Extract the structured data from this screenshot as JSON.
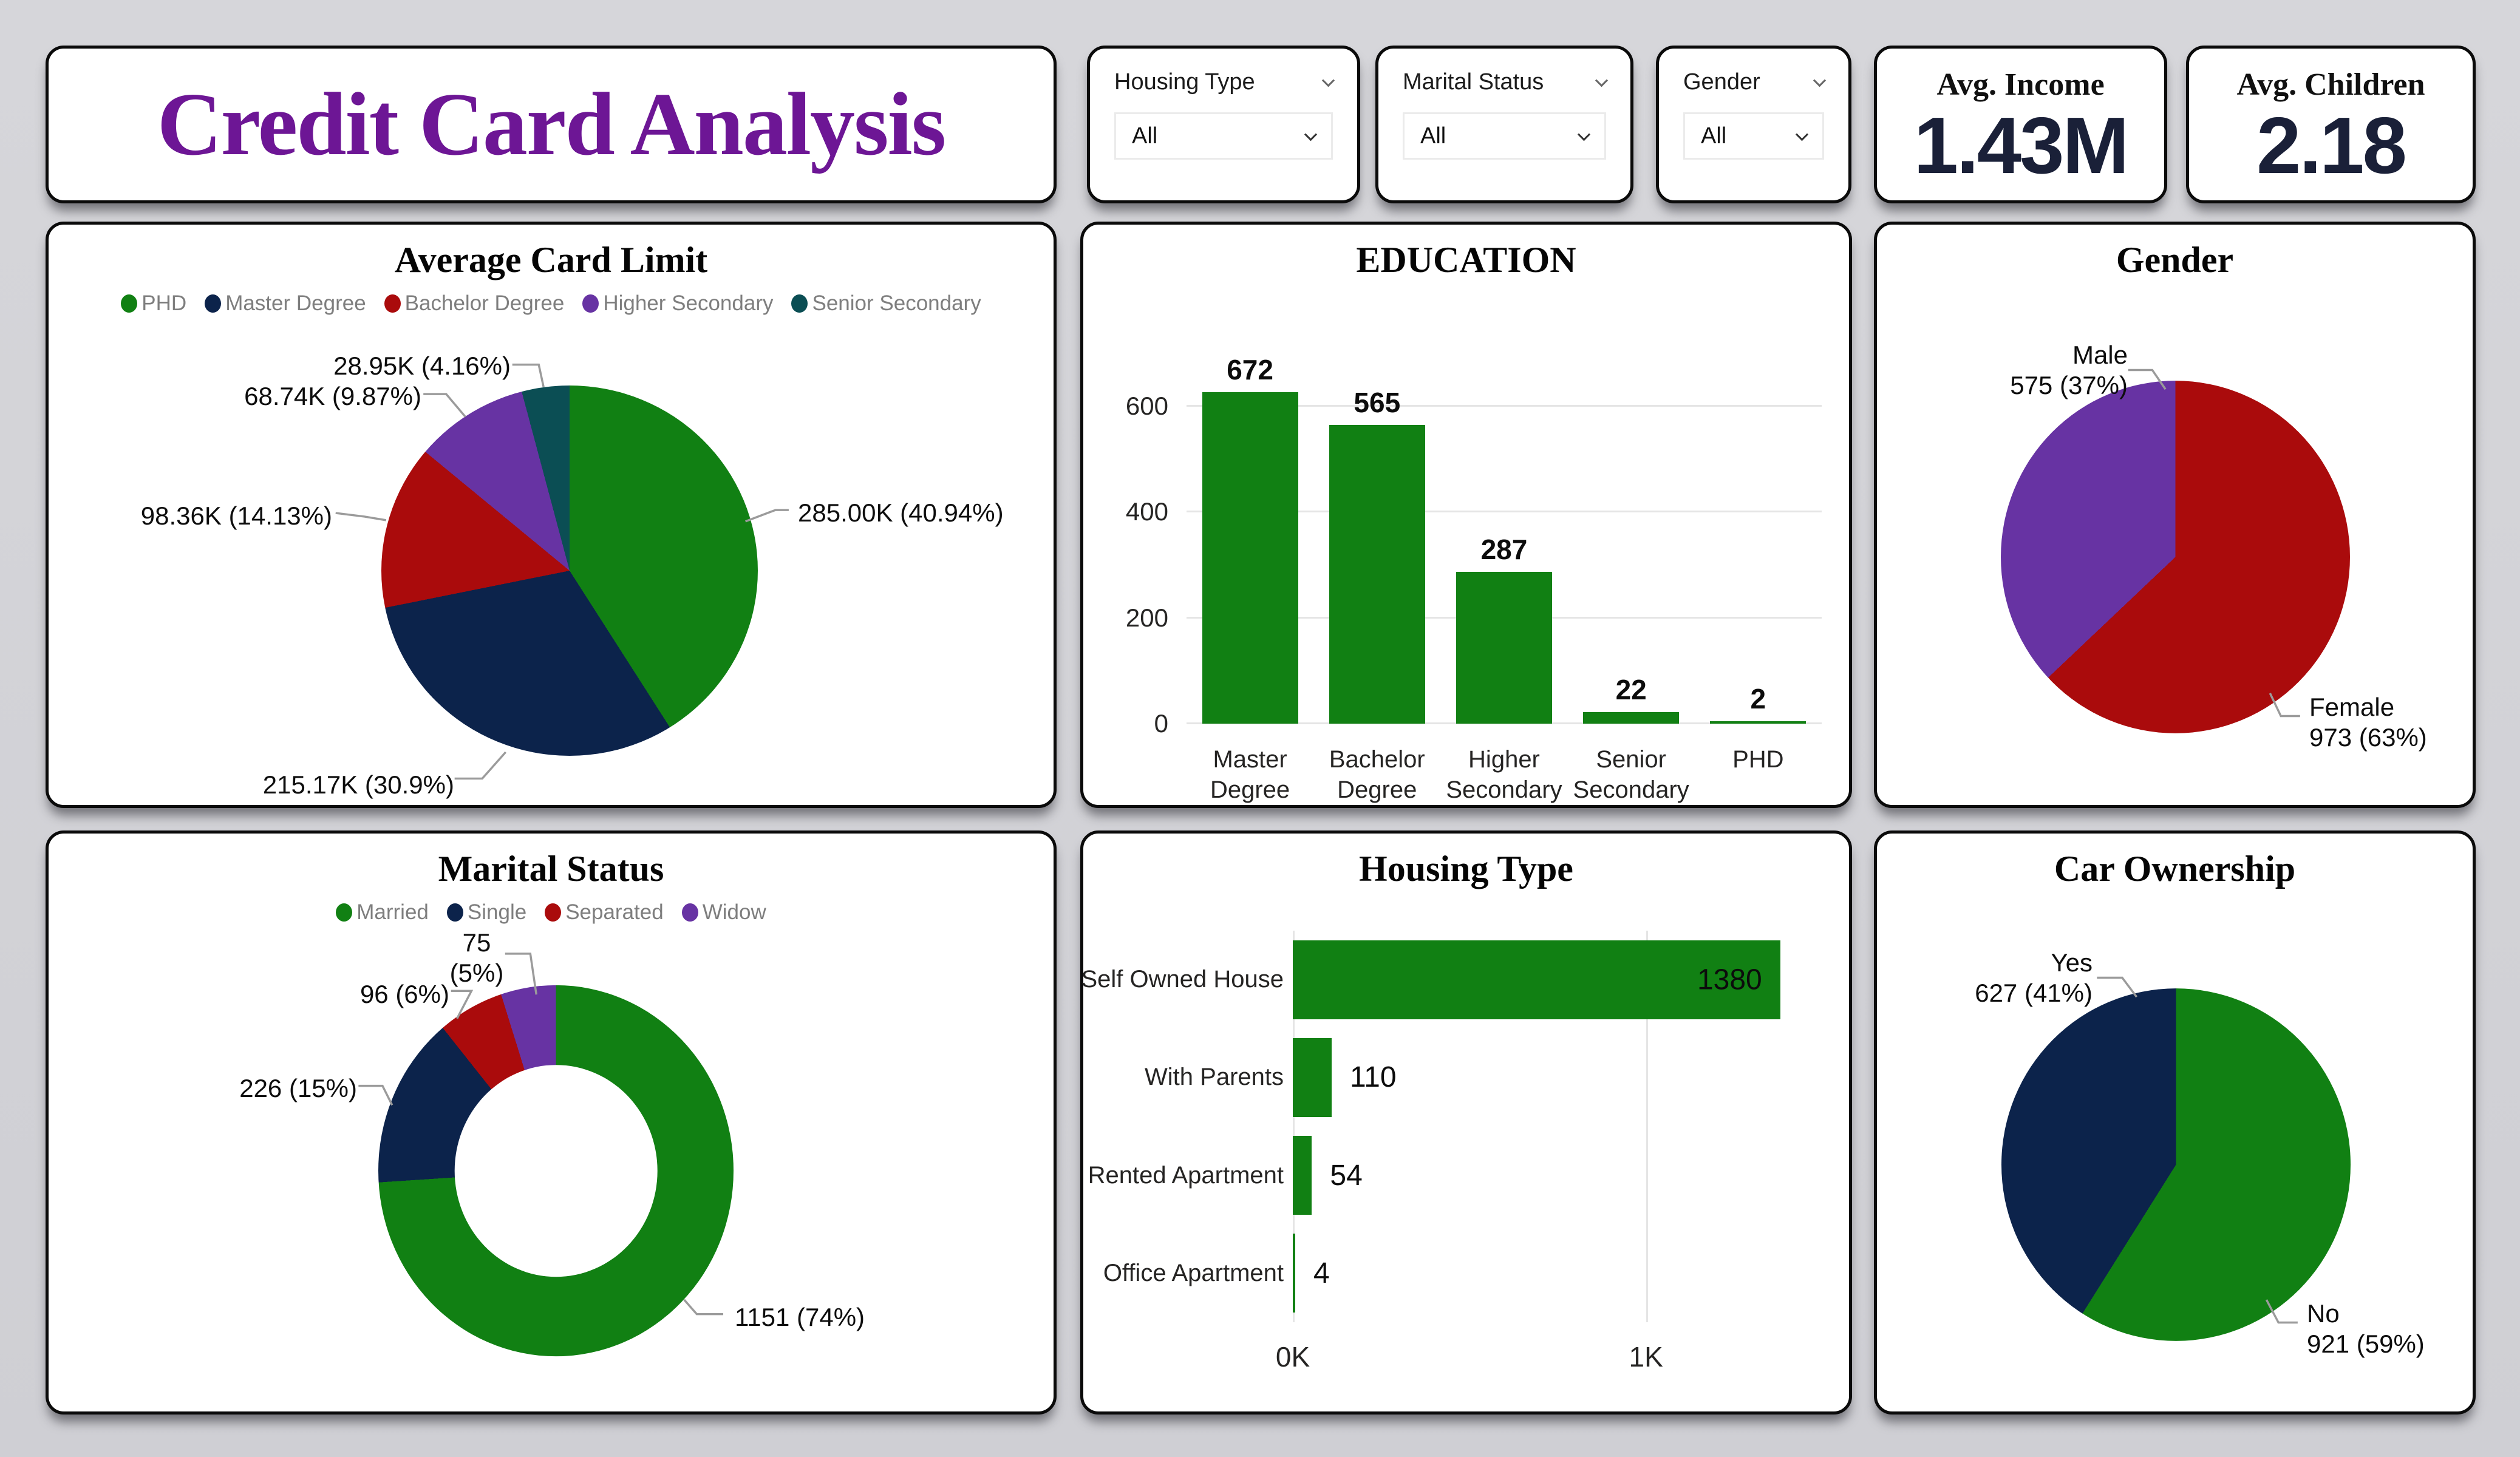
{
  "page": {
    "background": "#d2d2d7",
    "card_border": "#0a0a0a"
  },
  "header": {
    "title": "Credit Card Analysis",
    "color": "#6D1695"
  },
  "filters": [
    {
      "label": "Housing Type",
      "value": "All"
    },
    {
      "label": "Marital Status",
      "value": "All"
    },
    {
      "label": "Gender",
      "value": "All"
    }
  ],
  "kpis": [
    {
      "label": "Avg. Income",
      "value": "1.43M"
    },
    {
      "label": "Avg. Children",
      "value": "2.18"
    }
  ],
  "colors": {
    "green": "#118013",
    "navy": "#0C234B",
    "red": "#AA0B0C",
    "purple": "#6733A3",
    "teal": "#0B4E54",
    "kpi_value": "#1A2038",
    "legend_text": "#7E7E7E"
  },
  "chart_data": [
    {
      "id": "avg_card_limit",
      "type": "pie",
      "title": "Average Card Limit",
      "legend": [
        {
          "label": "PHD",
          "color": "#118013"
        },
        {
          "label": "Master Degree",
          "color": "#0C234B"
        },
        {
          "label": "Bachelor Degree",
          "color": "#AA0B0C"
        },
        {
          "label": "Higher Secondary",
          "color": "#6733A3"
        },
        {
          "label": "Senior Secondary",
          "color": "#0B4E54"
        }
      ],
      "series": [
        {
          "name": "PHD",
          "value": 285.0,
          "pct": 40.94,
          "label": "285.00K (40.94%)",
          "color": "#118013"
        },
        {
          "name": "Master Degree",
          "value": 215.17,
          "pct": 30.9,
          "label": "215.17K (30.9%)",
          "color": "#0C234B"
        },
        {
          "name": "Bachelor Degree",
          "value": 98.36,
          "pct": 14.13,
          "label": "98.36K (14.13%)",
          "color": "#AA0B0C"
        },
        {
          "name": "Higher Secondary",
          "value": 68.74,
          "pct": 9.87,
          "label": "68.74K (9.87%)",
          "color": "#6733A3"
        },
        {
          "name": "Senior Secondary",
          "value": 28.95,
          "pct": 4.16,
          "label": "28.95K (4.16%)",
          "color": "#0B4E54"
        }
      ],
      "unit": "K"
    },
    {
      "id": "education",
      "type": "bar",
      "title": "EDUCATION",
      "categories": [
        "Master Degree",
        "Bachelor Degree",
        "Higher Secondary",
        "Senior Secondary",
        "PHD"
      ],
      "cat_lines": [
        [
          "Master",
          "Degree"
        ],
        [
          "Bachelor",
          "Degree"
        ],
        [
          "Higher",
          "Secondary"
        ],
        [
          "Senior",
          "Secondary"
        ],
        [
          "PHD"
        ]
      ],
      "values": [
        672,
        565,
        287,
        22,
        2
      ],
      "bar_color": "#118013",
      "y_ticks": [
        0,
        200,
        400,
        600
      ],
      "ylim": [
        0,
        700
      ]
    },
    {
      "id": "gender",
      "type": "pie",
      "title": "Gender",
      "series": [
        {
          "name": "Female",
          "value": 973,
          "pct": 63,
          "label_line1": "Female",
          "label_line2": "973 (63%)",
          "color": "#AA0B0C"
        },
        {
          "name": "Male",
          "value": 575,
          "pct": 37,
          "label_line1": "Male",
          "label_line2": "575 (37%)",
          "color": "#6733A3"
        }
      ]
    },
    {
      "id": "marital_status",
      "type": "donut",
      "title": "Marital Status",
      "legend": [
        {
          "label": "Married",
          "color": "#118013"
        },
        {
          "label": "Single",
          "color": "#0C234B"
        },
        {
          "label": "Separated",
          "color": "#AA0B0C"
        },
        {
          "label": "Widow",
          "color": "#6733A3"
        }
      ],
      "series": [
        {
          "name": "Married",
          "value": 1151,
          "pct": 74,
          "label": "1151 (74%)",
          "color": "#118013"
        },
        {
          "name": "Single",
          "value": 226,
          "pct": 15,
          "label": "226 (15%)",
          "color": "#0C234B"
        },
        {
          "name": "Separated",
          "value": 96,
          "pct": 6,
          "label": "96 (6%)",
          "color": "#AA0B0C"
        },
        {
          "name": "Widow",
          "value": 75,
          "pct": 5,
          "label_line1": "75",
          "label_line2": "(5%)",
          "color": "#6733A3"
        }
      ]
    },
    {
      "id": "housing_type",
      "type": "hbar",
      "title": "Housing Type",
      "categories": [
        "Self Owned House",
        "With Parents",
        "Rented Apartment",
        "Office Apartment"
      ],
      "values": [
        1380,
        110,
        54,
        4
      ],
      "bar_color": "#118013",
      "x_ticks": [
        "0K",
        "1K"
      ],
      "x_tick_values": [
        0,
        1000
      ],
      "xlim": [
        0,
        1530
      ]
    },
    {
      "id": "car_ownership",
      "type": "pie",
      "title": "Car Ownership",
      "series": [
        {
          "name": "No",
          "value": 921,
          "pct": 59,
          "label_line1": "No",
          "label_line2": "921 (59%)",
          "color": "#118013"
        },
        {
          "name": "Yes",
          "value": 627,
          "pct": 41,
          "label_line1": "Yes",
          "label_line2": "627 (41%)",
          "color": "#0C234B"
        }
      ]
    }
  ]
}
